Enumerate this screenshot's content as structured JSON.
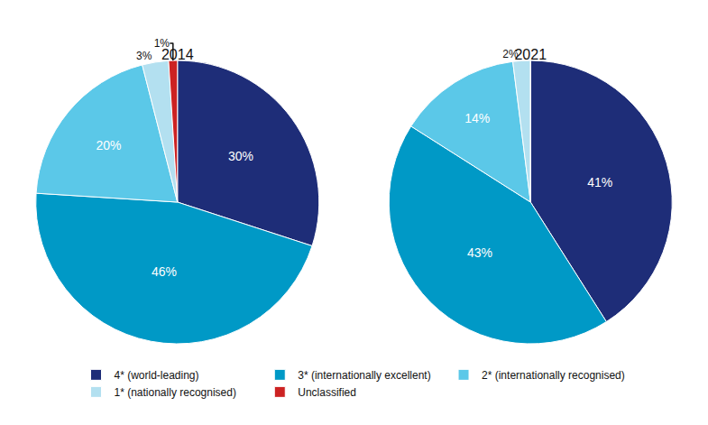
{
  "chart_data": {
    "type": "pie",
    "categories": [
      "4* (world-leading)",
      "3* (internationally excellent)",
      "2* (internationally recognised)",
      "1* (nationally recognised)",
      "Unclassified"
    ],
    "colors": [
      "#1e2d78",
      "#0099c6",
      "#5bc8e8",
      "#b3e0f0",
      "#cc2222"
    ],
    "series": [
      {
        "name": "2014",
        "values": [
          30,
          46,
          20,
          3,
          1
        ],
        "value_labels": [
          "30%",
          "46%",
          "20%",
          "3%",
          "1%"
        ]
      },
      {
        "name": "2021",
        "values": [
          41,
          43,
          14,
          2,
          0
        ],
        "value_labels": [
          "41%",
          "43%",
          "14%",
          "2%",
          null
        ]
      }
    ],
    "data_labels": true,
    "legend": "bottom"
  }
}
